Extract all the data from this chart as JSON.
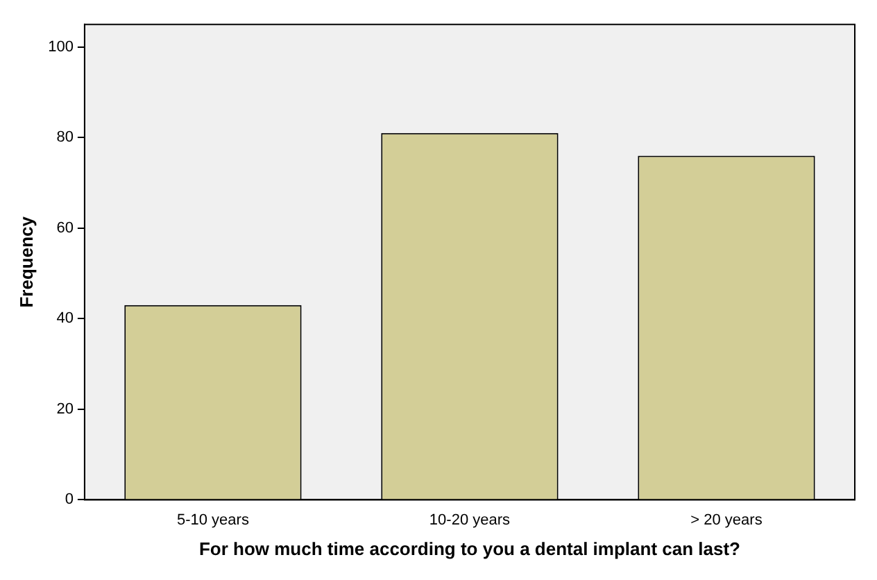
{
  "chart_data": {
    "type": "bar",
    "xlabel": "For how much time according to you a dental implant can last?",
    "ylabel": "Frequency",
    "categories": [
      "5-10 years",
      "10-20 years",
      "> 20 years"
    ],
    "values": [
      43,
      81,
      76
    ],
    "color": "#d3ce97",
    "ylim": [
      0,
      105
    ],
    "yticks": [
      0,
      20,
      40,
      60,
      80,
      100
    ],
    "grid": false,
    "legend": false
  }
}
